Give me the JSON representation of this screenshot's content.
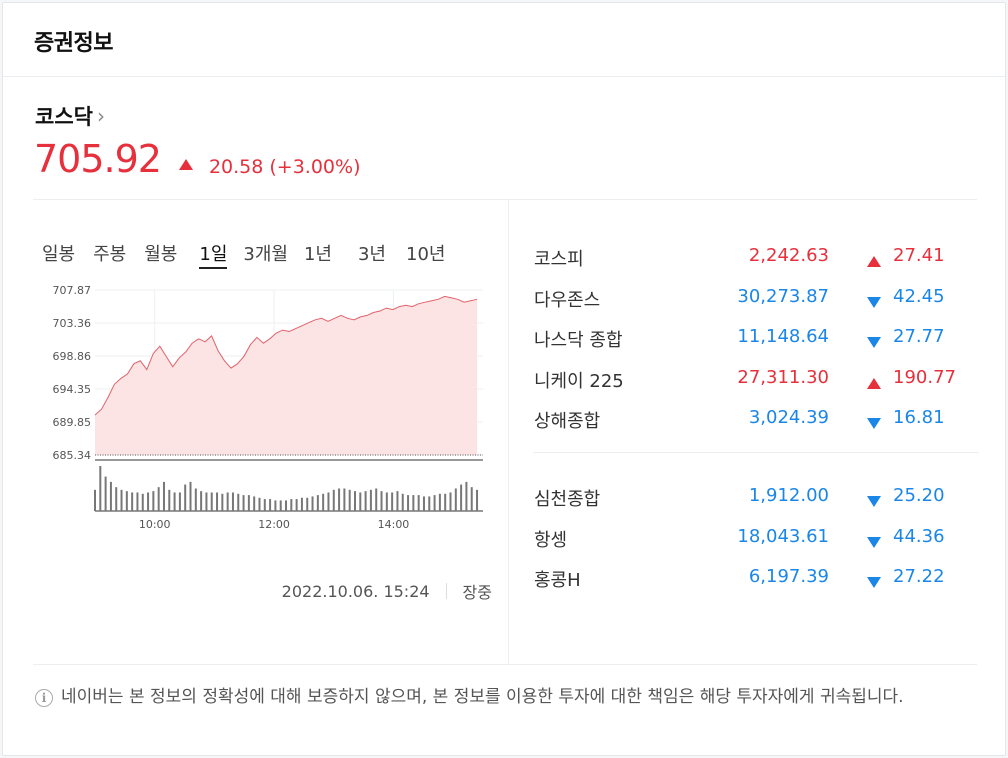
{
  "header": {
    "title": "증권정보"
  },
  "main_index": {
    "name": "코스닥",
    "chevron": "›",
    "value": "705.92",
    "change": "20.58",
    "change_pct": "(+3.00%)",
    "direction": "up"
  },
  "tabs": [
    {
      "label": "일봉",
      "active": false
    },
    {
      "label": "주봉",
      "active": false
    },
    {
      "label": "월봉",
      "active": false
    },
    {
      "label": "1일",
      "active": true
    },
    {
      "label": "3개월",
      "active": false
    },
    {
      "label": "1년",
      "active": false
    },
    {
      "label": "3년",
      "active": false
    },
    {
      "label": "10년",
      "active": false
    }
  ],
  "chart_data": {
    "type": "area",
    "title": "",
    "y_ticks": [
      "707.87",
      "703.36",
      "698.86",
      "694.35",
      "689.85",
      "685.34"
    ],
    "ylim": [
      685.34,
      707.87
    ],
    "x_ticks": [
      "10:00",
      "12:00",
      "14:00"
    ],
    "x_range": [
      "09:00",
      "15:30"
    ],
    "reference_line": 685.34,
    "series": [
      {
        "values": [
          690.8,
          691.6,
          693.2,
          695.0,
          695.8,
          696.4,
          697.8,
          698.2,
          697.0,
          699.2,
          700.2,
          698.8,
          697.4,
          698.6,
          699.4,
          700.6,
          701.2,
          700.8,
          701.6,
          699.6,
          698.2,
          697.2,
          697.8,
          698.8,
          700.4,
          701.4,
          700.6,
          701.2,
          702.0,
          702.4,
          702.2,
          702.6,
          703.0,
          703.4,
          703.8,
          704.0,
          703.6,
          704.0,
          704.4,
          704.0,
          703.8,
          704.2,
          704.4,
          704.8,
          705.0,
          705.4,
          705.2,
          705.6,
          705.8,
          705.6,
          706.0,
          706.2,
          706.4,
          706.6,
          707.0,
          706.8,
          706.6,
          706.2,
          706.4,
          706.6
        ]
      }
    ],
    "volume": [
      16,
      34,
      26,
      22,
      18,
      16,
      15,
      14,
      14,
      13,
      14,
      15,
      18,
      22,
      16,
      14,
      14,
      20,
      22,
      17,
      15,
      14,
      14,
      14,
      13,
      14,
      14,
      13,
      12,
      12,
      11,
      10,
      9,
      9,
      8,
      8,
      8,
      9,
      9,
      10,
      10,
      11,
      12,
      13,
      14,
      16,
      17,
      17,
      16,
      15,
      14,
      15,
      16,
      17,
      15,
      14,
      14,
      15,
      13,
      12,
      12,
      12,
      11,
      11,
      12,
      13,
      13,
      14,
      17,
      20,
      22,
      18,
      16
    ]
  },
  "timestamp": {
    "datetime": "2022.10.06. 15:24",
    "status": "장중"
  },
  "indices_group1": [
    {
      "name": "코스피",
      "value": "2,242.63",
      "change": "27.41",
      "direction": "up"
    },
    {
      "name": "다우존스",
      "value": "30,273.87",
      "change": "42.45",
      "direction": "down"
    },
    {
      "name": "나스닥 종합",
      "value": "11,148.64",
      "change": "27.77",
      "direction": "down"
    },
    {
      "name": "니케이 225",
      "value": "27,311.30",
      "change": "190.77",
      "direction": "up"
    },
    {
      "name": "상해종합",
      "value": "3,024.39",
      "change": "16.81",
      "direction": "down"
    }
  ],
  "indices_group2": [
    {
      "name": "심천종합",
      "value": "1,912.00",
      "change": "25.20",
      "direction": "down"
    },
    {
      "name": "항셍",
      "value": "18,043.61",
      "change": "44.36",
      "direction": "down"
    },
    {
      "name": "홍콩H",
      "value": "6,197.39",
      "change": "27.22",
      "direction": "down"
    }
  ],
  "notice": {
    "text": "네이버는 본 정보의 정확성에 대해 보증하지 않으며, 본 정보를 이용한 투자에 대한 책임은 해당 투자자에게 귀속됩니다."
  },
  "colors": {
    "up": "#e6303c",
    "down": "#1a86e8",
    "area_fill": "#fce3e4",
    "area_line": "#e1636b"
  }
}
